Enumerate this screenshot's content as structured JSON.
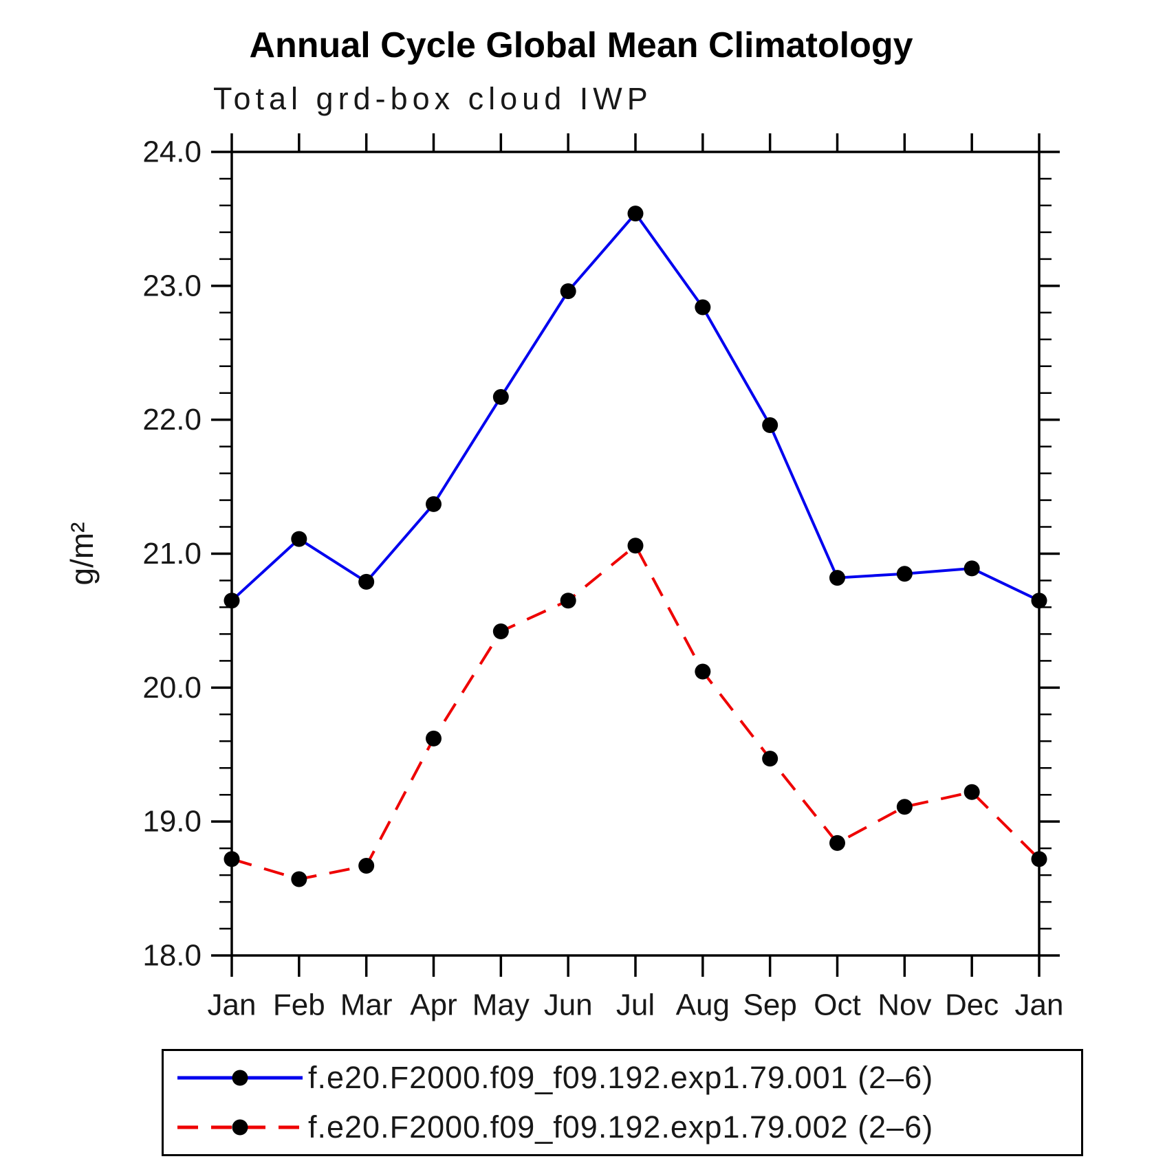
{
  "title": "Annual Cycle Global Mean Climatology",
  "subtitle": "Total grd-box cloud IWP",
  "chart_data": {
    "type": "line",
    "x_categories": [
      "Jan",
      "Feb",
      "Mar",
      "Apr",
      "May",
      "Jun",
      "Jul",
      "Aug",
      "Sep",
      "Oct",
      "Nov",
      "Dec",
      "Jan"
    ],
    "xlabel": "",
    "ylabel": "g/m²",
    "ylim": [
      18.0,
      24.0
    ],
    "y_major_tick_labels": [
      "18.0",
      "19.0",
      "20.0",
      "21.0",
      "22.0",
      "23.0",
      "24.0"
    ],
    "y_major_step": 1.0,
    "y_minor_step": 0.2,
    "grid": false,
    "legend_position": "bottom",
    "series": [
      {
        "name": "f.e20.F2000.f09_f09.192.exp1.79.001 (2–6)",
        "color": "#0000ee",
        "line_style": "solid",
        "marker": "filled-circle",
        "marker_color": "#000000",
        "values": [
          20.65,
          21.11,
          20.79,
          21.37,
          22.17,
          22.96,
          23.54,
          22.84,
          21.96,
          20.82,
          20.85,
          20.89,
          20.65
        ]
      },
      {
        "name": "f.e20.F2000.f09_f09.192.exp1.79.002 (2–6)",
        "color": "#ee0000",
        "line_style": "dashed",
        "marker": "filled-circle",
        "marker_color": "#000000",
        "values": [
          18.72,
          18.57,
          18.67,
          19.62,
          20.42,
          20.65,
          21.06,
          20.12,
          19.47,
          18.84,
          19.11,
          19.22,
          18.72
        ]
      }
    ]
  }
}
